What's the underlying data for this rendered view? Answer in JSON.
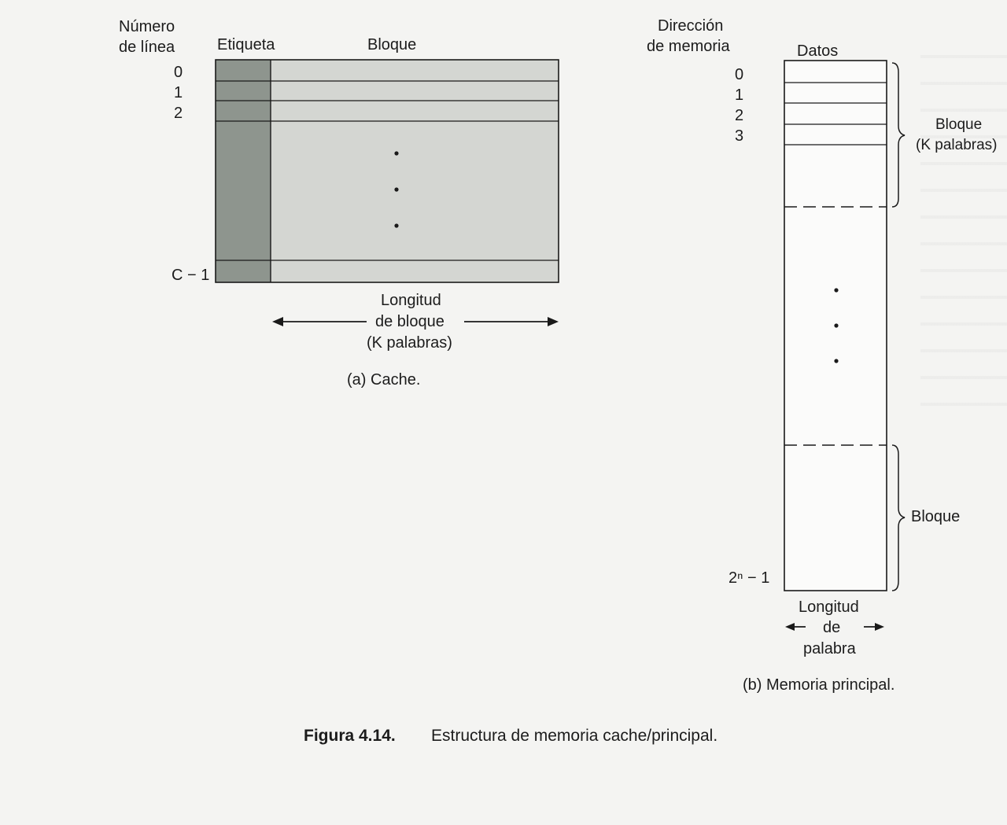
{
  "figure": {
    "number": "Figura 4.14.",
    "caption": "Estructura de memoria cache/principal."
  },
  "cache": {
    "line_number_header": [
      "Número",
      "de línea"
    ],
    "tag_header": "Etiqueta",
    "block_header": "Bloque",
    "line_labels": [
      "0",
      "1",
      "2"
    ],
    "last_line_label": "C − 1",
    "block_length_label": [
      "Longitud",
      "de bloque",
      "(K palabras)"
    ],
    "sub_caption": "(a)  Cache."
  },
  "main_memory": {
    "address_header": [
      "Dirección",
      "de memoria"
    ],
    "data_header": "Datos",
    "address_labels": [
      "0",
      "1",
      "2",
      "3"
    ],
    "block_label_top": [
      "Bloque",
      "(K palabras)"
    ],
    "block_label_bottom": "Bloque",
    "last_address_label": "2ⁿ − 1",
    "word_length_label": [
      "Longitud",
      "de",
      "palabra"
    ],
    "sub_caption": "(b)  Memoria principal."
  },
  "colors": {
    "tag_fill": "#8e958e",
    "block_fill": "#d4d6d2",
    "line": "#1a1a1a"
  }
}
